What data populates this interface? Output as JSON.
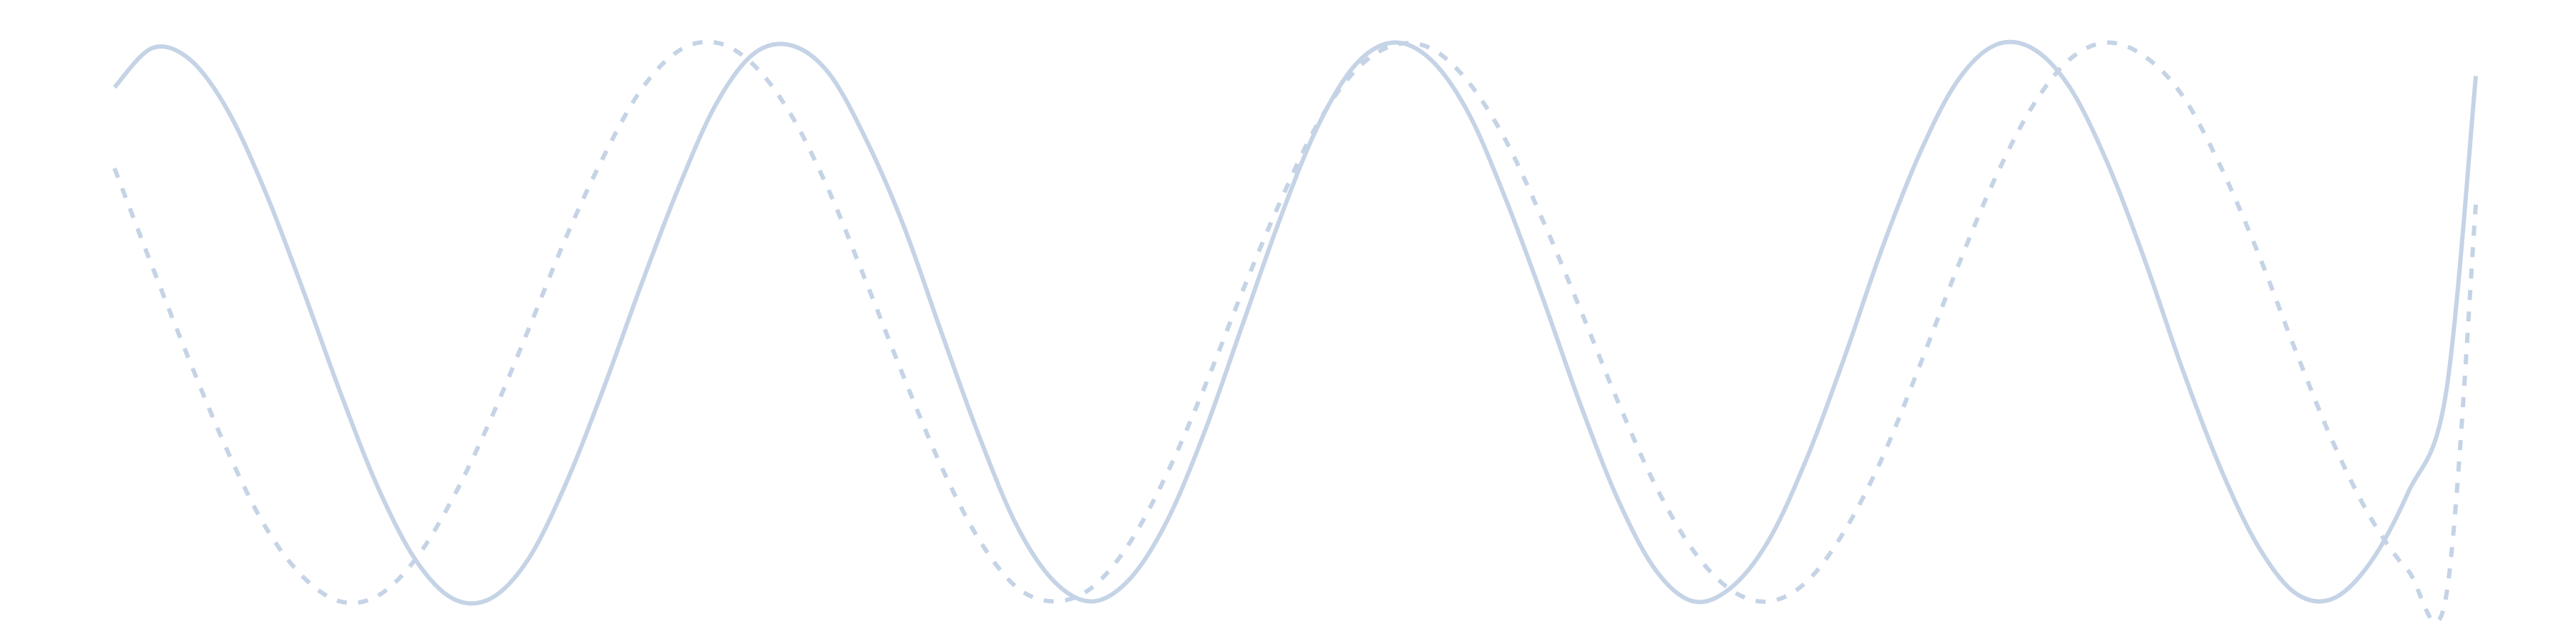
{
  "chart_data": {
    "type": "line",
    "title": "",
    "xlabel": "",
    "ylabel": "",
    "grid": false,
    "legend": "none",
    "axes_visible": false,
    "xlim": [
      0,
      6.28
    ],
    "ylim": [
      -1.05,
      1.05
    ],
    "series": [
      {
        "style": "solid",
        "color": "#c5d3e6",
        "x": [
          0,
          0.1,
          0.2,
          0.3,
          0.4,
          0.5,
          0.6,
          0.7,
          0.8,
          0.9,
          1.0,
          1.1,
          1.2,
          1.3,
          1.4,
          1.5,
          1.6,
          1.7,
          1.8,
          1.9,
          2.0,
          2.1,
          2.2,
          2.3,
          2.4,
          2.5,
          2.6,
          2.7,
          2.8,
          2.9,
          3.0,
          3.1,
          3.2,
          3.3,
          3.4,
          3.5,
          3.6,
          3.7,
          3.8,
          3.9,
          4.0,
          4.1,
          4.2,
          4.3,
          4.4,
          4.5,
          4.6,
          4.7,
          4.8,
          4.9,
          5.0,
          5.1,
          5.2,
          5.3,
          5.4,
          5.5,
          5.6,
          5.7,
          5.8,
          5.9,
          6.0,
          6.1,
          6.2,
          6.28
        ],
        "y": [
          0.84,
          0.98,
          0.94,
          0.76,
          0.47,
          0.12,
          -0.25,
          -0.59,
          -0.85,
          -0.99,
          -0.99,
          -0.85,
          -0.58,
          -0.24,
          0.13,
          0.48,
          0.78,
          0.96,
          0.99,
          0.89,
          0.65,
          0.34,
          -0.04,
          -0.41,
          -0.73,
          -0.93,
          -1.0,
          -0.92,
          -0.71,
          -0.39,
          -0.01,
          0.37,
          0.7,
          0.92,
          1.0,
          0.94,
          0.75,
          0.44,
          0.08,
          -0.3,
          -0.64,
          -0.89,
          -1.0,
          -0.95,
          -0.78,
          -0.49,
          -0.13,
          0.26,
          0.6,
          0.86,
          0.99,
          0.98,
          0.84,
          0.57,
          0.22,
          -0.17,
          -0.52,
          -0.8,
          -0.97,
          -0.99,
          -0.86,
          -0.61,
          -0.26,
          0.88
        ]
      },
      {
        "style": "dashed",
        "color": "#c5d3e6",
        "x": [
          0,
          0.1,
          0.2,
          0.3,
          0.4,
          0.5,
          0.6,
          0.7,
          0.8,
          0.9,
          1.0,
          1.1,
          1.2,
          1.3,
          1.4,
          1.5,
          1.6,
          1.7,
          1.8,
          1.9,
          2.0,
          2.1,
          2.2,
          2.3,
          2.4,
          2.5,
          2.6,
          2.7,
          2.8,
          2.9,
          3.0,
          3.1,
          3.2,
          3.3,
          3.4,
          3.5,
          3.6,
          3.7,
          3.8,
          3.9,
          4.0,
          4.1,
          4.2,
          4.3,
          4.4,
          4.5,
          4.6,
          4.7,
          4.8,
          4.9,
          5.0,
          5.1,
          5.2,
          5.3,
          5.4,
          5.5,
          5.6,
          5.7,
          5.8,
          5.9,
          6.0,
          6.1,
          6.2,
          6.28
        ],
        "y": [
          0.55,
          0.2,
          -0.14,
          -0.46,
          -0.73,
          -0.91,
          -1.0,
          -0.98,
          -0.85,
          -0.63,
          -0.35,
          -0.03,
          0.3,
          0.59,
          0.83,
          0.97,
          1.0,
          0.92,
          0.74,
          0.47,
          0.14,
          -0.2,
          -0.52,
          -0.78,
          -0.95,
          -1.0,
          -0.95,
          -0.79,
          -0.54,
          -0.23,
          0.11,
          0.43,
          0.71,
          0.9,
          0.99,
          0.98,
          0.86,
          0.65,
          0.36,
          0.04,
          -0.29,
          -0.59,
          -0.82,
          -0.96,
          -1.0,
          -0.93,
          -0.75,
          -0.49,
          -0.16,
          0.19,
          0.51,
          0.77,
          0.94,
          1.0,
          0.95,
          0.81,
          0.56,
          0.25,
          -0.1,
          -0.43,
          -0.7,
          -0.89,
          -0.99,
          0.42
        ]
      }
    ]
  }
}
